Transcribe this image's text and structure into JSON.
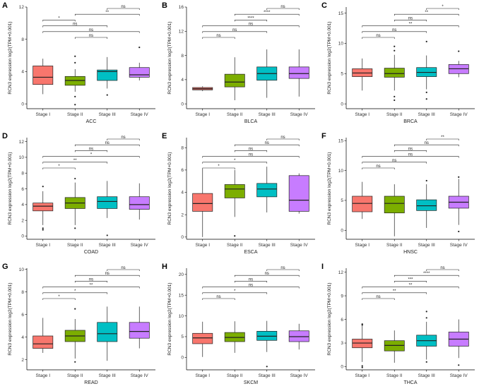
{
  "figure": {
    "colors": [
      "#F8766D",
      "#7CAE00",
      "#00BFC4",
      "#C77CFF"
    ],
    "categories": [
      "Stage I",
      "Stage II",
      "Stage III",
      "Stage IV"
    ],
    "ylabel": "RCN3 expression log2(TPM+0.001)"
  },
  "chart_data": [
    {
      "type": "box",
      "panel": "A",
      "xlabel": "ACC",
      "categories": [
        "Stage I",
        "Stage II",
        "Stage III",
        "Stage IV"
      ],
      "ylim": [
        -0.6,
        12
      ],
      "yticks": [
        0,
        4,
        8,
        12
      ],
      "boxes": [
        {
          "q1": 2.4,
          "median": 3.3,
          "q3": 4.7,
          "lower": 1.2,
          "upper": 5.6,
          "outliers": []
        },
        {
          "q1": 2.3,
          "median": 2.9,
          "q3": 3.4,
          "lower": 1.5,
          "upper": 4.3,
          "outliers": [
            5.9,
            5.1,
            0.9,
            -0.1
          ]
        },
        {
          "q1": 2.9,
          "median": 4.0,
          "q3": 4.2,
          "lower": 1.9,
          "upper": 5.8,
          "outliers": [
            1.1
          ]
        },
        {
          "q1": 3.3,
          "median": 3.6,
          "q3": 4.5,
          "lower": 2.9,
          "upper": 5.1,
          "outliers": [
            7.0
          ]
        }
      ],
      "comparisons": [
        {
          "from": 3,
          "to": 4,
          "label": "ns"
        },
        {
          "from": 2,
          "to": 4,
          "label": "**"
        },
        {
          "from": 1,
          "to": 2,
          "label": "*"
        },
        {
          "from": 1,
          "to": 3,
          "label": "ns"
        },
        {
          "from": 1,
          "to": 4,
          "label": "ns"
        },
        {
          "from": 2,
          "to": 3,
          "label": "ns"
        }
      ]
    },
    {
      "type": "box",
      "panel": "B",
      "xlabel": "BLCA",
      "categories": [
        "Stage I",
        "Stage II",
        "Stage III",
        "Stage IV"
      ],
      "ylim": [
        -0.8,
        16
      ],
      "yticks": [
        0,
        4,
        8,
        12,
        16
      ],
      "boxes": [
        {
          "q1": 2.3,
          "median": 2.5,
          "q3": 2.7,
          "lower": 2.1,
          "upper": 2.9,
          "outliers": []
        },
        {
          "q1": 2.8,
          "median": 3.6,
          "q3": 4.9,
          "lower": 0.6,
          "upper": 7.7,
          "outliers": []
        },
        {
          "q1": 3.9,
          "median": 5.0,
          "q3": 6.1,
          "lower": 1.0,
          "upper": 9.0,
          "outliers": []
        },
        {
          "q1": 4.2,
          "median": 5.0,
          "q3": 6.1,
          "lower": 1.2,
          "upper": 9.0,
          "outliers": []
        }
      ],
      "comparisons": [
        {
          "from": 3,
          "to": 4,
          "label": "ns"
        },
        {
          "from": 2,
          "to": 4,
          "label": "****"
        },
        {
          "from": 2,
          "to": 3,
          "label": "****"
        },
        {
          "from": 1,
          "to": 4,
          "label": "ns"
        },
        {
          "from": 1,
          "to": 3,
          "label": "ns"
        },
        {
          "from": 1,
          "to": 2,
          "label": "ns"
        }
      ]
    },
    {
      "type": "box",
      "panel": "C",
      "xlabel": "BRCA",
      "categories": [
        "Stage I",
        "Stage II",
        "Stage III",
        "Stage IV"
      ],
      "ylim": [
        -0.8,
        16
      ],
      "yticks": [
        0,
        5,
        10,
        15
      ],
      "boxes": [
        {
          "q1": 4.5,
          "median": 5.1,
          "q3": 5.8,
          "lower": 2.2,
          "upper": 7.5,
          "outliers": []
        },
        {
          "q1": 4.4,
          "median": 5.0,
          "q3": 5.9,
          "lower": 2.2,
          "upper": 8.1,
          "outliers": [
            9.5,
            8.8,
            1.2,
            0.6
          ]
        },
        {
          "q1": 4.5,
          "median": 5.2,
          "q3": 6.0,
          "lower": 2.4,
          "upper": 8.0,
          "outliers": [
            10.3,
            1.9,
            0.8
          ]
        },
        {
          "q1": 5.0,
          "median": 5.8,
          "q3": 6.5,
          "lower": 4.4,
          "upper": 7.1,
          "outliers": [
            8.7
          ]
        }
      ],
      "comparisons": [
        {
          "from": 3,
          "to": 4,
          "label": "*"
        },
        {
          "from": 2,
          "to": 4,
          "label": "**"
        },
        {
          "from": 2,
          "to": 3,
          "label": "ns"
        },
        {
          "from": 1,
          "to": 4,
          "label": "**"
        },
        {
          "from": 1,
          "to": 3,
          "label": "ns"
        },
        {
          "from": 1,
          "to": 2,
          "label": "ns"
        }
      ]
    },
    {
      "type": "box",
      "panel": "D",
      "xlabel": "COAD",
      "categories": [
        "Stage I",
        "Stage II",
        "Stage III",
        "Stage IV"
      ],
      "ylim": [
        -0.4,
        12.5
      ],
      "yticks": [
        0,
        2,
        4,
        6,
        8,
        10,
        12
      ],
      "boxes": [
        {
          "q1": 3.2,
          "median": 3.8,
          "q3": 4.2,
          "lower": 1.4,
          "upper": 5.7,
          "outliers": [
            6.3,
            1.0,
            0.8
          ]
        },
        {
          "q1": 3.5,
          "median": 4.2,
          "q3": 4.9,
          "lower": 1.4,
          "upper": 6.8,
          "outliers": [
            7.3,
            1.0
          ]
        },
        {
          "q1": 3.5,
          "median": 4.4,
          "q3": 5.0,
          "lower": 2.3,
          "upper": 7.0,
          "outliers": [
            0.1
          ]
        },
        {
          "q1": 3.4,
          "median": 4.0,
          "q3": 5.0,
          "lower": 2.1,
          "upper": 6.7,
          "outliers": []
        }
      ],
      "comparisons": [
        {
          "from": 3,
          "to": 4,
          "label": "ns"
        },
        {
          "from": 2,
          "to": 4,
          "label": "ns"
        },
        {
          "from": 2,
          "to": 3,
          "label": "ns"
        },
        {
          "from": 1,
          "to": 4,
          "label": "*"
        },
        {
          "from": 1,
          "to": 3,
          "label": "**"
        },
        {
          "from": 1,
          "to": 2,
          "label": "*"
        }
      ]
    },
    {
      "type": "box",
      "panel": "E",
      "xlabel": "ESCA",
      "categories": [
        "Stage I",
        "Stage II",
        "Stage III",
        "Stage IV"
      ],
      "ylim": [
        -0.2,
        8.9
      ],
      "yticks": [
        0,
        2,
        4,
        6,
        8
      ],
      "boxes": [
        {
          "q1": 2.3,
          "median": 3.0,
          "q3": 3.9,
          "lower": 0.0,
          "upper": 6.1,
          "outliers": []
        },
        {
          "q1": 3.5,
          "median": 4.3,
          "q3": 4.7,
          "lower": 1.8,
          "upper": 6.0,
          "outliers": [
            0.1
          ]
        },
        {
          "q1": 3.6,
          "median": 4.3,
          "q3": 4.8,
          "lower": 2.2,
          "upper": 6.3,
          "outliers": []
        },
        {
          "q1": 2.3,
          "median": 3.3,
          "q3": 5.5,
          "lower": 2.1,
          "upper": 5.7,
          "outliers": []
        }
      ],
      "comparisons": [
        {
          "from": 3,
          "to": 4,
          "label": "ns"
        },
        {
          "from": 2,
          "to": 4,
          "label": "ns"
        },
        {
          "from": 2,
          "to": 3,
          "label": "ns"
        },
        {
          "from": 1,
          "to": 4,
          "label": "ns"
        },
        {
          "from": 1,
          "to": 3,
          "label": "*"
        },
        {
          "from": 1,
          "to": 2,
          "label": "*"
        }
      ]
    },
    {
      "type": "box",
      "panel": "F",
      "xlabel": "HNSC",
      "categories": [
        "Stage I",
        "Stage II",
        "Stage III",
        "Stage IV"
      ],
      "ylim": [
        -1.5,
        15.5
      ],
      "yticks": [
        0,
        5,
        10,
        15
      ],
      "boxes": [
        {
          "q1": 3.1,
          "median": 4.5,
          "q3": 5.7,
          "lower": 1.9,
          "upper": 8.1,
          "outliers": []
        },
        {
          "q1": 2.9,
          "median": 4.5,
          "q3": 5.7,
          "lower": -1.0,
          "upper": 7.7,
          "outliers": []
        },
        {
          "q1": 3.3,
          "median": 4.1,
          "q3": 5.1,
          "lower": 0.4,
          "upper": 7.7,
          "outliers": [
            8.3
          ]
        },
        {
          "q1": 3.7,
          "median": 4.7,
          "q3": 5.7,
          "lower": 0.9,
          "upper": 8.6,
          "outliers": [
            8.9,
            -0.2
          ]
        }
      ],
      "comparisons": [
        {
          "from": 3,
          "to": 4,
          "label": "**"
        },
        {
          "from": 2,
          "to": 4,
          "label": "ns"
        },
        {
          "from": 2,
          "to": 3,
          "label": "ns"
        },
        {
          "from": 1,
          "to": 4,
          "label": "ns"
        },
        {
          "from": 1,
          "to": 3,
          "label": "ns"
        },
        {
          "from": 1,
          "to": 2,
          "label": "ns"
        }
      ]
    },
    {
      "type": "box",
      "panel": "G",
      "xlabel": "READ",
      "categories": [
        "Stage I",
        "Stage II",
        "Stage III",
        "Stage IV"
      ],
      "ylim": [
        1.1,
        10.1
      ],
      "yticks": [
        2,
        4,
        6,
        8,
        10
      ],
      "boxes": [
        {
          "q1": 3.0,
          "median": 3.4,
          "q3": 4.1,
          "lower": 2.6,
          "upper": 5.7,
          "outliers": []
        },
        {
          "q1": 3.6,
          "median": 4.1,
          "q3": 4.6,
          "lower": 2.1,
          "upper": 5.6,
          "outliers": [
            6.5,
            1.8
          ]
        },
        {
          "q1": 3.6,
          "median": 4.3,
          "q3": 5.3,
          "lower": 1.9,
          "upper": 6.7,
          "outliers": []
        },
        {
          "q1": 3.9,
          "median": 4.5,
          "q3": 5.3,
          "lower": 3.0,
          "upper": 6.7,
          "outliers": []
        }
      ],
      "comparisons": [
        {
          "from": 3,
          "to": 4,
          "label": "ns"
        },
        {
          "from": 2,
          "to": 4,
          "label": "ns"
        },
        {
          "from": 2,
          "to": 3,
          "label": "ns"
        },
        {
          "from": 1,
          "to": 4,
          "label": "**"
        },
        {
          "from": 1,
          "to": 3,
          "label": "*"
        },
        {
          "from": 1,
          "to": 2,
          "label": "*"
        }
      ]
    },
    {
      "type": "box",
      "panel": "H",
      "xlabel": "SKCM",
      "categories": [
        "Stage I",
        "Stage II",
        "Stage III",
        "Stage IV"
      ],
      "ylim": [
        -3.0,
        21.5
      ],
      "yticks": [
        0,
        5,
        10,
        15,
        20
      ],
      "boxes": [
        {
          "q1": 3.3,
          "median": 4.7,
          "q3": 5.8,
          "lower": 0.1,
          "upper": 8.6,
          "outliers": []
        },
        {
          "q1": 3.8,
          "median": 4.8,
          "q3": 6.0,
          "lower": 1.1,
          "upper": 8.7,
          "outliers": []
        },
        {
          "q1": 4.1,
          "median": 5.1,
          "q3": 6.3,
          "lower": 1.3,
          "upper": 8.8,
          "outliers": [
            -2.2
          ]
        },
        {
          "q1": 3.8,
          "median": 5.0,
          "q3": 6.4,
          "lower": 1.9,
          "upper": 8.1,
          "outliers": []
        }
      ],
      "comparisons": [
        {
          "from": 3,
          "to": 4,
          "label": "ns"
        },
        {
          "from": 2,
          "to": 4,
          "label": "ns"
        },
        {
          "from": 2,
          "to": 3,
          "label": "ns"
        },
        {
          "from": 1,
          "to": 4,
          "label": "ns"
        },
        {
          "from": 1,
          "to": 3,
          "label": "*"
        },
        {
          "from": 1,
          "to": 2,
          "label": "ns"
        }
      ]
    },
    {
      "type": "box",
      "panel": "I",
      "xlabel": "THCA",
      "categories": [
        "Stage I",
        "Stage II",
        "Stage III",
        "Stage IV"
      ],
      "ylim": [
        -0.4,
        12.5
      ],
      "yticks": [
        0,
        3,
        6,
        9,
        12
      ],
      "boxes": [
        {
          "q1": 2.4,
          "median": 3.0,
          "q3": 3.5,
          "lower": 0.6,
          "upper": 5.2,
          "outliers": [
            5.4,
            5.3,
            0.1,
            -0.1
          ]
        },
        {
          "q1": 2.0,
          "median": 2.7,
          "q3": 3.3,
          "lower": 0.5,
          "upper": 4.6,
          "outliers": []
        },
        {
          "q1": 2.6,
          "median": 3.3,
          "q3": 4.0,
          "lower": 0.9,
          "upper": 5.7,
          "outliers": [
            7.0,
            6.2,
            0.6
          ]
        },
        {
          "q1": 2.6,
          "median": 3.5,
          "q3": 4.4,
          "lower": 1.1,
          "upper": 6.0,
          "outliers": [
            0.2
          ]
        }
      ],
      "comparisons": [
        {
          "from": 3,
          "to": 4,
          "label": "ns"
        },
        {
          "from": 2,
          "to": 4,
          "label": "****"
        },
        {
          "from": 2,
          "to": 3,
          "label": "***"
        },
        {
          "from": 1,
          "to": 4,
          "label": "**"
        },
        {
          "from": 1,
          "to": 3,
          "label": "**"
        },
        {
          "from": 1,
          "to": 2,
          "label": "ns"
        }
      ]
    }
  ]
}
